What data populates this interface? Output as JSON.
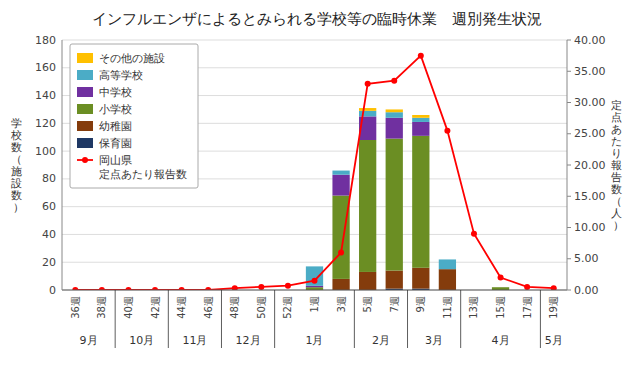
{
  "chart_data": {
    "type": "bar",
    "stacked": true,
    "title": "インフルエンザによるとみられる学校等の臨時休業　週別発生状況",
    "categories": [
      "36週",
      "38週",
      "40週",
      "42週",
      "44週",
      "46週",
      "48週",
      "50週",
      "52週",
      "1週",
      "3週",
      "5週",
      "7週",
      "9週",
      "11週",
      "13週",
      "15週",
      "17週",
      "19週"
    ],
    "groups": [
      {
        "label": "9月",
        "categories": [
          "36週",
          "38週"
        ]
      },
      {
        "label": "10月",
        "categories": [
          "40週",
          "42週"
        ]
      },
      {
        "label": "11月",
        "categories": [
          "44週",
          "46週"
        ]
      },
      {
        "label": "12月",
        "categories": [
          "48週",
          "50週"
        ]
      },
      {
        "label": "1月",
        "categories": [
          "52週",
          "1週",
          "3週"
        ]
      },
      {
        "label": "2月",
        "categories": [
          "5週",
          "7週"
        ]
      },
      {
        "label": "3月",
        "categories": [
          "9週",
          "11週"
        ]
      },
      {
        "label": "4月",
        "categories": [
          "13週",
          "15週",
          "17週"
        ]
      },
      {
        "label": "5月",
        "categories": [
          "19週"
        ]
      }
    ],
    "series": [
      {
        "name": "保育園",
        "color": "#1F3864",
        "values": [
          0,
          0,
          0,
          0,
          0,
          0,
          0,
          0,
          0,
          0,
          0,
          0,
          1,
          1,
          0,
          0,
          0,
          0,
          0
        ]
      },
      {
        "name": "幼稚園",
        "color": "#843C0C",
        "values": [
          0,
          0,
          0,
          0,
          0,
          0,
          0,
          0,
          0,
          0,
          8,
          13,
          13,
          15,
          15,
          0,
          0,
          0,
          0
        ]
      },
      {
        "name": "小学校",
        "color": "#6B8E23",
        "values": [
          0,
          0,
          0,
          0,
          0,
          0,
          0,
          0,
          0,
          2,
          60,
          95,
          95,
          95,
          0,
          0,
          2,
          0,
          0
        ]
      },
      {
        "name": "中学校",
        "color": "#7030A0",
        "values": [
          0,
          0,
          0,
          0,
          0,
          0,
          0,
          0,
          0,
          1,
          15,
          17,
          15,
          10,
          0,
          0,
          0,
          0,
          0
        ]
      },
      {
        "name": "高等学校",
        "color": "#4BACC6",
        "values": [
          0,
          0,
          0,
          0,
          0,
          0,
          0,
          0,
          0,
          14,
          3,
          4,
          4,
          3,
          7,
          0,
          0,
          0,
          0
        ]
      },
      {
        "name": "その他の施設",
        "color": "#FFC000",
        "values": [
          0,
          0,
          0,
          0,
          0,
          0,
          0,
          0,
          0,
          0,
          0,
          2,
          2,
          2,
          0,
          0,
          0,
          0,
          0
        ]
      },
      {
        "name": "岡山県\n定点あたり報告数",
        "type": "line",
        "axis": "y2",
        "color": "#FF0000",
        "marker": "circle",
        "line_style": "solid",
        "values": [
          0.0,
          0.0,
          0.0,
          0.0,
          0.0,
          0.0,
          0.3,
          0.5,
          0.7,
          1.5,
          6.0,
          33.0,
          33.5,
          37.5,
          25.5,
          9.0,
          2.0,
          0.5,
          0.3
        ]
      }
    ],
    "ylabel": "学\n校\n数\n（\n施\n設\n数\n）",
    "y2label": "定\n点\nあ\nた\nり\n報\n告\n数\n（\n人\n）",
    "ylim": [
      0,
      180
    ],
    "yticks": [
      0,
      20,
      40,
      60,
      80,
      100,
      120,
      140,
      160,
      180
    ],
    "y2lim": [
      0,
      40.0
    ],
    "y2ticks": [
      {
        "value": 0.0,
        "label": "0.00"
      },
      {
        "value": 5.0,
        "label": "5.00"
      },
      {
        "value": 10.0,
        "label": "10.00"
      },
      {
        "value": 15.0,
        "label": "15.00"
      },
      {
        "value": 20.0,
        "label": "20.00"
      },
      {
        "value": 25.0,
        "label": "25.00"
      },
      {
        "value": 30.0,
        "label": "30.00"
      },
      {
        "value": 35.0,
        "label": "35.00"
      },
      {
        "value": 40.0,
        "label": "40.00"
      }
    ],
    "grid": true,
    "legend": "upper left"
  }
}
